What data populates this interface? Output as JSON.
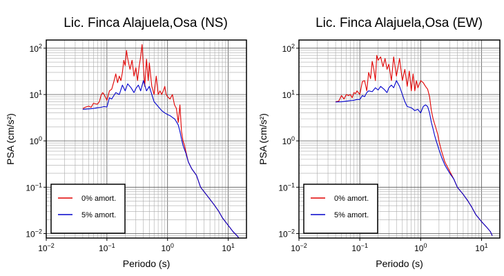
{
  "chart_data": [
    {
      "type": "line",
      "title": "Lic. Finca Alajuela,Osa (NS)",
      "xlabel": "Periodo (s)",
      "ylabel": "PSA (cm/s²)",
      "x_scale": "log",
      "y_scale": "log",
      "xlim": [
        0.01,
        20
      ],
      "ylim": [
        0.008,
        150
      ],
      "xticks": [
        {
          "value": 0.01,
          "base": "10",
          "exp": "−2"
        },
        {
          "value": 0.1,
          "base": "10",
          "exp": "−1"
        },
        {
          "value": 1,
          "base": "10",
          "exp": "0"
        },
        {
          "value": 10,
          "base": "10",
          "exp": "1"
        }
      ],
      "yticks": [
        {
          "value": 0.01,
          "base": "10",
          "exp": "−2"
        },
        {
          "value": 0.1,
          "base": "10",
          "exp": "−1"
        },
        {
          "value": 1,
          "base": "10",
          "exp": "0"
        },
        {
          "value": 10,
          "base": "10",
          "exp": "1"
        },
        {
          "value": 100,
          "base": "10",
          "exp": "2"
        }
      ],
      "grid": true,
      "legend_position": "bottom-left",
      "series": [
        {
          "name": "0% amort.",
          "color": "#e00000",
          "x": [
            0.04,
            0.045,
            0.05,
            0.055,
            0.06,
            0.065,
            0.07,
            0.075,
            0.08,
            0.085,
            0.09,
            0.1,
            0.11,
            0.12,
            0.13,
            0.14,
            0.15,
            0.16,
            0.17,
            0.18,
            0.19,
            0.2,
            0.21,
            0.22,
            0.24,
            0.26,
            0.28,
            0.3,
            0.32,
            0.34,
            0.36,
            0.38,
            0.4,
            0.42,
            0.45,
            0.48,
            0.5,
            0.55,
            0.6,
            0.65,
            0.7,
            0.75,
            0.8,
            0.85,
            0.9,
            0.95,
            1.0,
            1.1,
            1.2,
            1.3,
            1.4,
            1.5,
            1.6,
            1.7,
            1.8,
            1.9,
            2.0,
            2.2,
            2.5,
            3.0,
            3.5,
            4.0,
            5.0,
            6.0,
            7.0,
            8.0,
            10.0,
            12.0,
            14.0,
            15.0
          ],
          "y": [
            5.0,
            5.4,
            5.6,
            5.3,
            6.5,
            6.3,
            6.2,
            7.0,
            9.5,
            11.0,
            10.0,
            7.5,
            12.0,
            13.0,
            19.0,
            28.0,
            18.0,
            25.0,
            20.0,
            30.0,
            55.0,
            42.0,
            90.0,
            60.0,
            35.0,
            55.0,
            25.0,
            38.0,
            20.0,
            40.0,
            65.0,
            120.0,
            40.0,
            15.0,
            58.0,
            20.0,
            48.0,
            15.0,
            10.0,
            25.0,
            10.0,
            12.0,
            10.0,
            12.0,
            15.0,
            10.0,
            9.0,
            8.0,
            10.0,
            6.0,
            5.0,
            2.5,
            6.0,
            1.6,
            1.0,
            0.8,
            0.6,
            0.35,
            0.25,
            0.18,
            0.1,
            0.08,
            0.055,
            0.04,
            0.03,
            0.022,
            0.015,
            0.011,
            0.009,
            0.008
          ]
        },
        {
          "name": "5% amort.",
          "color": "#0000cc",
          "x": [
            0.04,
            0.05,
            0.06,
            0.07,
            0.08,
            0.09,
            0.1,
            0.11,
            0.12,
            0.13,
            0.14,
            0.16,
            0.18,
            0.2,
            0.22,
            0.25,
            0.28,
            0.3,
            0.33,
            0.36,
            0.4,
            0.45,
            0.5,
            0.55,
            0.6,
            0.7,
            0.8,
            0.9,
            1.0,
            1.1,
            1.2,
            1.3,
            1.4,
            1.5,
            1.6,
            1.7,
            1.8,
            1.9,
            2.0,
            2.2,
            2.5,
            3.0,
            3.5,
            4.0,
            5.0,
            6.0,
            7.0,
            8.0,
            10.0,
            12.0,
            14.0,
            15.0
          ],
          "y": [
            4.8,
            4.9,
            5.0,
            5.2,
            5.3,
            5.5,
            5.4,
            8.5,
            8.0,
            9.5,
            11.0,
            10.0,
            16.0,
            12.0,
            17.0,
            14.0,
            11.0,
            13.5,
            16.0,
            12.0,
            20.0,
            12.0,
            15.0,
            10.0,
            7.0,
            5.5,
            4.5,
            4.0,
            3.7,
            3.5,
            3.2,
            3.0,
            2.6,
            2.2,
            1.6,
            1.1,
            0.8,
            0.65,
            0.55,
            0.35,
            0.25,
            0.18,
            0.1,
            0.08,
            0.055,
            0.04,
            0.03,
            0.022,
            0.015,
            0.011,
            0.009,
            0.008
          ]
        }
      ]
    },
    {
      "type": "line",
      "title": "Lic. Finca Alajuela,Osa (EW)",
      "xlabel": "Periodo (s)",
      "ylabel": "PSA (cm/s²)",
      "x_scale": "log",
      "y_scale": "log",
      "xlim": [
        0.01,
        20
      ],
      "ylim": [
        0.008,
        150
      ],
      "xticks": [
        {
          "value": 0.01,
          "base": "10",
          "exp": "−2"
        },
        {
          "value": 0.1,
          "base": "10",
          "exp": "−1"
        },
        {
          "value": 1,
          "base": "10",
          "exp": "0"
        },
        {
          "value": 10,
          "base": "10",
          "exp": "1"
        }
      ],
      "yticks": [
        {
          "value": 0.01,
          "base": "10",
          "exp": "−2"
        },
        {
          "value": 0.1,
          "base": "10",
          "exp": "−1"
        },
        {
          "value": 1,
          "base": "10",
          "exp": "0"
        },
        {
          "value": 10,
          "base": "10",
          "exp": "1"
        },
        {
          "value": 100,
          "base": "10",
          "exp": "2"
        }
      ],
      "grid": true,
      "legend_position": "bottom-left",
      "series": [
        {
          "name": "0% amort.",
          "color": "#e00000",
          "x": [
            0.04,
            0.045,
            0.05,
            0.055,
            0.06,
            0.065,
            0.07,
            0.075,
            0.08,
            0.085,
            0.09,
            0.1,
            0.11,
            0.12,
            0.13,
            0.14,
            0.15,
            0.16,
            0.17,
            0.18,
            0.19,
            0.2,
            0.22,
            0.24,
            0.26,
            0.28,
            0.3,
            0.33,
            0.36,
            0.4,
            0.45,
            0.5,
            0.55,
            0.6,
            0.65,
            0.7,
            0.75,
            0.8,
            0.85,
            0.9,
            1.0,
            1.1,
            1.2,
            1.3,
            1.4,
            1.5,
            1.6,
            1.7,
            1.8,
            1.9,
            2.0,
            2.2,
            2.5,
            3.0,
            3.5,
            4.0,
            5.0,
            6.0,
            7.0,
            8.0,
            10.0,
            12.0,
            14.0,
            15.0
          ],
          "y": [
            7.0,
            7.2,
            9.5,
            8.0,
            10.0,
            9.5,
            10.0,
            8.5,
            11.0,
            10.5,
            12.0,
            10.0,
            19.0,
            20.0,
            12.0,
            30.0,
            22.0,
            52.0,
            35.0,
            20.0,
            70.0,
            55.0,
            65.0,
            40.0,
            60.0,
            35.0,
            45.0,
            20.0,
            65.0,
            25.0,
            60.0,
            20.0,
            35.0,
            15.0,
            32.0,
            12.0,
            28.0,
            12.0,
            20.0,
            14.0,
            20.0,
            18.0,
            15.0,
            13.0,
            9.0,
            4.5,
            3.0,
            2.3,
            1.8,
            1.4,
            1.0,
            0.6,
            0.35,
            0.22,
            0.15,
            0.1,
            0.07,
            0.05,
            0.036,
            0.026,
            0.018,
            0.014,
            0.011,
            0.009
          ]
        },
        {
          "name": "5% amort.",
          "color": "#0000cc",
          "x": [
            0.04,
            0.05,
            0.06,
            0.07,
            0.08,
            0.09,
            0.1,
            0.11,
            0.12,
            0.13,
            0.14,
            0.16,
            0.18,
            0.2,
            0.22,
            0.25,
            0.28,
            0.3,
            0.33,
            0.36,
            0.4,
            0.45,
            0.5,
            0.55,
            0.6,
            0.7,
            0.8,
            0.9,
            1.0,
            1.1,
            1.2,
            1.3,
            1.4,
            1.5,
            1.6,
            1.7,
            1.8,
            1.9,
            2.0,
            2.2,
            2.5,
            3.0,
            3.5,
            4.0,
            5.0,
            6.0,
            7.0,
            8.0,
            10.0,
            12.0,
            14.0,
            15.0
          ],
          "y": [
            6.9,
            7.0,
            7.2,
            7.4,
            7.5,
            7.8,
            7.8,
            9.5,
            9.0,
            11.0,
            12.0,
            11.5,
            14.0,
            12.5,
            15.0,
            13.0,
            11.0,
            14.0,
            16.0,
            14.0,
            20.0,
            15.0,
            10.0,
            7.0,
            5.5,
            5.2,
            4.5,
            4.8,
            4.0,
            5.5,
            6.0,
            5.5,
            4.0,
            2.5,
            1.8,
            1.3,
            1.0,
            0.8,
            0.65,
            0.45,
            0.3,
            0.2,
            0.15,
            0.1,
            0.07,
            0.05,
            0.036,
            0.026,
            0.018,
            0.014,
            0.011,
            0.009
          ]
        }
      ]
    }
  ]
}
